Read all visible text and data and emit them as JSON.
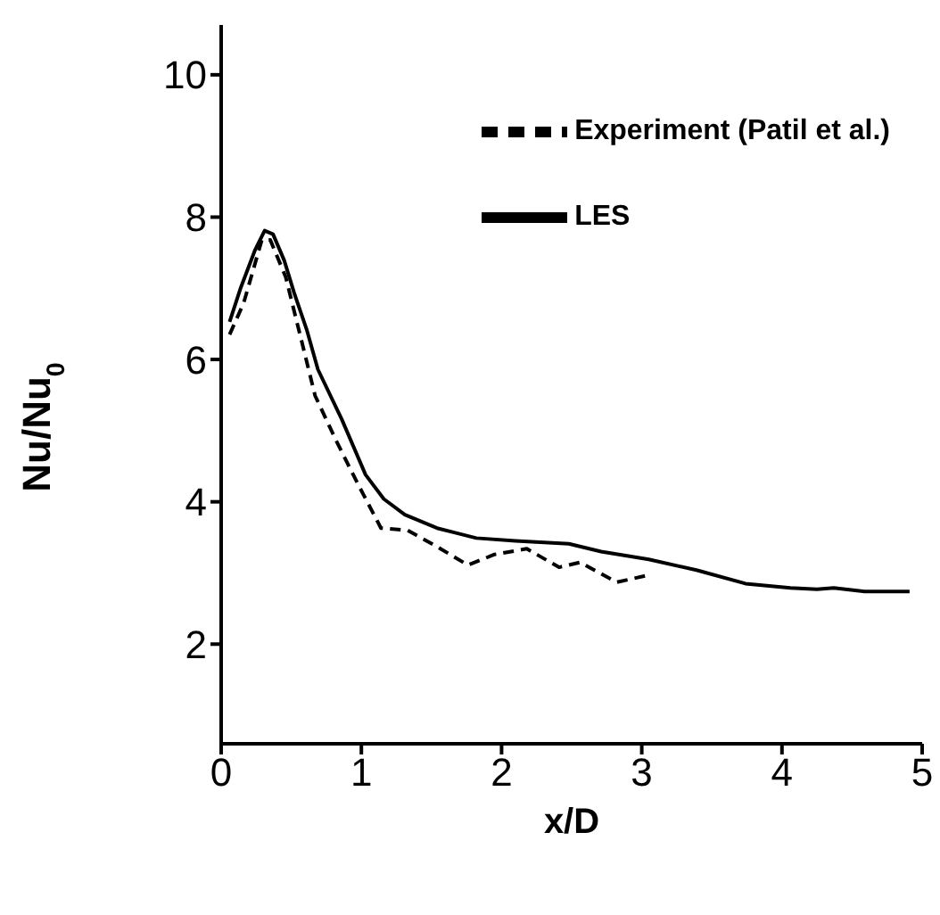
{
  "chart_data": {
    "type": "line",
    "xlabel": "x/D",
    "ylabel": "Nu/Nu$_{0}$",
    "xlim": [
      0,
      5
    ],
    "xticks": [
      0,
      1,
      2,
      3,
      4,
      5
    ],
    "ylim": [
      0.6,
      10.7
    ],
    "yticks": [
      2,
      4,
      6,
      8,
      10
    ],
    "legend": "top right",
    "marker": "none",
    "series": [
      {
        "name": "Experiment (Patil et al.)",
        "color": "#000000",
        "line_style": "dashed",
        "x": [
          0.06,
          0.16,
          0.29,
          0.35,
          0.46,
          0.6,
          0.67,
          0.82,
          0.97,
          1.14,
          1.33,
          1.54,
          1.76,
          1.95,
          2.18,
          2.41,
          2.56,
          2.82,
          3.05
        ],
        "values": [
          6.35,
          6.79,
          7.68,
          7.68,
          7.16,
          6.05,
          5.49,
          4.86,
          4.27,
          3.63,
          3.6,
          3.37,
          3.11,
          3.26,
          3.34,
          3.08,
          3.15,
          2.87,
          2.97
        ]
      },
      {
        "name": "LES",
        "color": "#000000",
        "line_style": "solid",
        "x": [
          0.06,
          0.14,
          0.24,
          0.31,
          0.37,
          0.45,
          0.52,
          0.61,
          0.69,
          0.86,
          1.03,
          1.16,
          1.31,
          1.54,
          1.82,
          2.1,
          2.48,
          2.71,
          3.05,
          3.39,
          3.74,
          4.06,
          4.25,
          4.37,
          4.59,
          4.91
        ],
        "values": [
          6.53,
          7.01,
          7.53,
          7.81,
          7.76,
          7.39,
          6.94,
          6.42,
          5.86,
          5.16,
          4.38,
          4.04,
          3.82,
          3.63,
          3.49,
          3.45,
          3.41,
          3.3,
          3.19,
          3.04,
          2.85,
          2.79,
          2.77,
          2.79,
          2.74,
          2.74
        ]
      }
    ]
  }
}
